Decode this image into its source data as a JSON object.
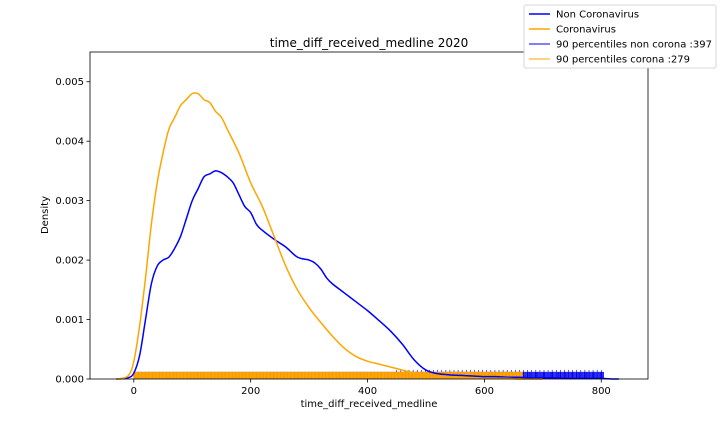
{
  "chart_data": {
    "type": "line",
    "title": "time_diff_received_medline 2020",
    "xlabel": "time_diff_received_medline",
    "ylabel": "Density",
    "xlim": [
      -75,
      880
    ],
    "ylim": [
      0,
      0.0055
    ],
    "x_ticks": [
      0,
      200,
      400,
      600,
      800
    ],
    "x_tick_labels": [
      "0",
      "200",
      "400",
      "600",
      "800"
    ],
    "y_ticks": [
      0,
      0.001,
      0.002,
      0.003,
      0.004,
      0.005
    ],
    "y_tick_labels": [
      "0.000",
      "0.001",
      "0.002",
      "0.003",
      "0.004",
      "0.005"
    ],
    "grid": false,
    "legend_position": "top-right",
    "series": [
      {
        "name": "Non Coronavirus",
        "color": "#0000ff",
        "x": [
          -30,
          -10,
          0,
          10,
          20,
          30,
          40,
          50,
          60,
          70,
          80,
          90,
          100,
          110,
          120,
          130,
          140,
          150,
          160,
          170,
          180,
          190,
          200,
          210,
          220,
          240,
          260,
          280,
          300,
          310,
          320,
          330,
          340,
          360,
          380,
          400,
          420,
          440,
          460,
          480,
          500,
          520,
          540,
          560,
          580,
          600,
          620,
          640,
          660,
          680,
          700,
          720,
          740,
          760,
          780,
          800,
          820,
          830
        ],
        "y": [
          0.0,
          2e-05,
          0.0001,
          0.0004,
          0.001,
          0.0016,
          0.0019,
          0.002,
          0.00205,
          0.0022,
          0.0024,
          0.0027,
          0.003,
          0.0032,
          0.0034,
          0.00345,
          0.0035,
          0.00347,
          0.0034,
          0.0033,
          0.0031,
          0.0029,
          0.0028,
          0.0026,
          0.0025,
          0.00235,
          0.00222,
          0.00205,
          0.002,
          0.00195,
          0.00185,
          0.0017,
          0.0016,
          0.00145,
          0.0013,
          0.00115,
          0.00098,
          0.0008,
          0.00058,
          0.00032,
          0.00015,
          9e-05,
          7e-05,
          6e-05,
          5e-05,
          4e-05,
          4e-05,
          3e-05,
          3e-05,
          2e-05,
          2e-05,
          2e-05,
          1e-05,
          1e-05,
          1e-05,
          1e-05,
          0.0,
          0.0
        ]
      },
      {
        "name": "Coronavirus",
        "color": "#ffa500",
        "x": [
          -30,
          -10,
          0,
          10,
          20,
          30,
          40,
          50,
          60,
          70,
          80,
          90,
          100,
          110,
          120,
          130,
          140,
          150,
          160,
          180,
          200,
          220,
          240,
          260,
          280,
          300,
          320,
          340,
          360,
          380,
          400,
          420,
          440,
          460,
          480,
          500,
          520,
          540,
          560,
          580,
          600,
          620,
          640,
          660,
          680,
          700
        ],
        "y": [
          0.0,
          5e-05,
          0.0003,
          0.0009,
          0.0017,
          0.0026,
          0.0033,
          0.0038,
          0.0042,
          0.0044,
          0.0046,
          0.0047,
          0.0048,
          0.0048,
          0.0047,
          0.00465,
          0.0045,
          0.0044,
          0.0042,
          0.0038,
          0.0033,
          0.0029,
          0.0024,
          0.0019,
          0.0015,
          0.0012,
          0.00095,
          0.00072,
          0.00052,
          0.00038,
          0.0003,
          0.00025,
          0.0002,
          0.00015,
          0.0001,
          6e-05,
          4e-05,
          3e-05,
          2e-05,
          2e-05,
          1e-05,
          1e-05,
          1e-05,
          0.0,
          0.0,
          0.0
        ]
      }
    ],
    "rug": [
      {
        "name": "90 percentiles non corona :397",
        "color": "#0000ff",
        "range": [
          0,
          805
        ],
        "height": 0.00012
      },
      {
        "name": "90 percentiles corona :279",
        "color": "#ffa500",
        "range": [
          0,
          665
        ],
        "height": 0.00012
      }
    ]
  }
}
